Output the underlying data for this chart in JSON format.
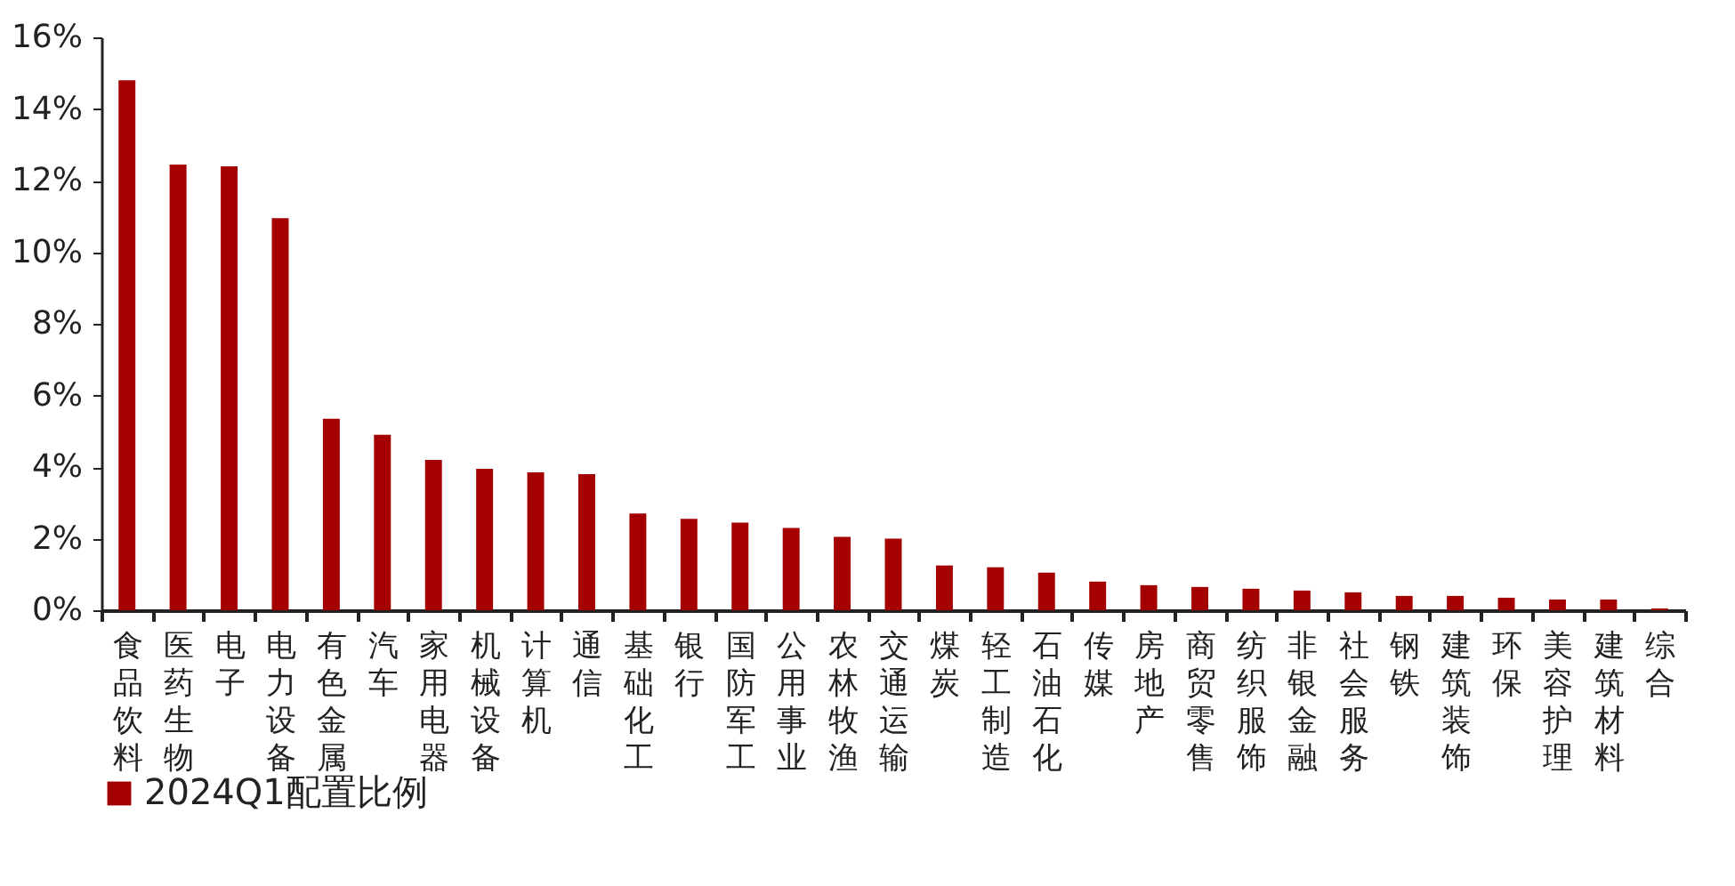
{
  "chart_data": {
    "type": "bar",
    "categories": [
      "食品饮料",
      "医药生物",
      "电子",
      "电力设备",
      "有色金属",
      "汽车",
      "家用电器",
      "机械设备",
      "计算机",
      "通信",
      "基础化工",
      "银行",
      "国防军工",
      "公用事业",
      "农林牧渔",
      "交通运输",
      "煤炭",
      "轻工制造",
      "石油石化",
      "传媒",
      "房地产",
      "商贸零售",
      "纺织服饰",
      "非银金融",
      "社会服务",
      "钢铁",
      "建筑装饰",
      "环保",
      "美容护理",
      "建筑材料",
      "综合"
    ],
    "series": [
      {
        "name": "2024Q1配置比例",
        "color": "#a50000",
        "values": [
          14.8,
          12.45,
          12.4,
          10.95,
          5.35,
          4.9,
          4.2,
          3.95,
          3.85,
          3.8,
          2.7,
          2.55,
          2.45,
          2.3,
          2.05,
          2.0,
          1.25,
          1.2,
          1.05,
          0.8,
          0.7,
          0.65,
          0.6,
          0.55,
          0.5,
          0.4,
          0.4,
          0.35,
          0.3,
          0.3,
          0.05
        ]
      }
    ],
    "ylim": [
      0,
      16
    ],
    "yticks": [
      {
        "value": 0,
        "label": "0%"
      },
      {
        "value": 2,
        "label": "2%"
      },
      {
        "value": 4,
        "label": "4%"
      },
      {
        "value": 6,
        "label": "6%"
      },
      {
        "value": 8,
        "label": "8%"
      },
      {
        "value": 10,
        "label": "10%"
      },
      {
        "value": 12,
        "label": "12%"
      },
      {
        "value": 14,
        "label": "14%"
      },
      {
        "value": 16,
        "label": "16%"
      }
    ],
    "grid": false,
    "legend": "bottom"
  }
}
